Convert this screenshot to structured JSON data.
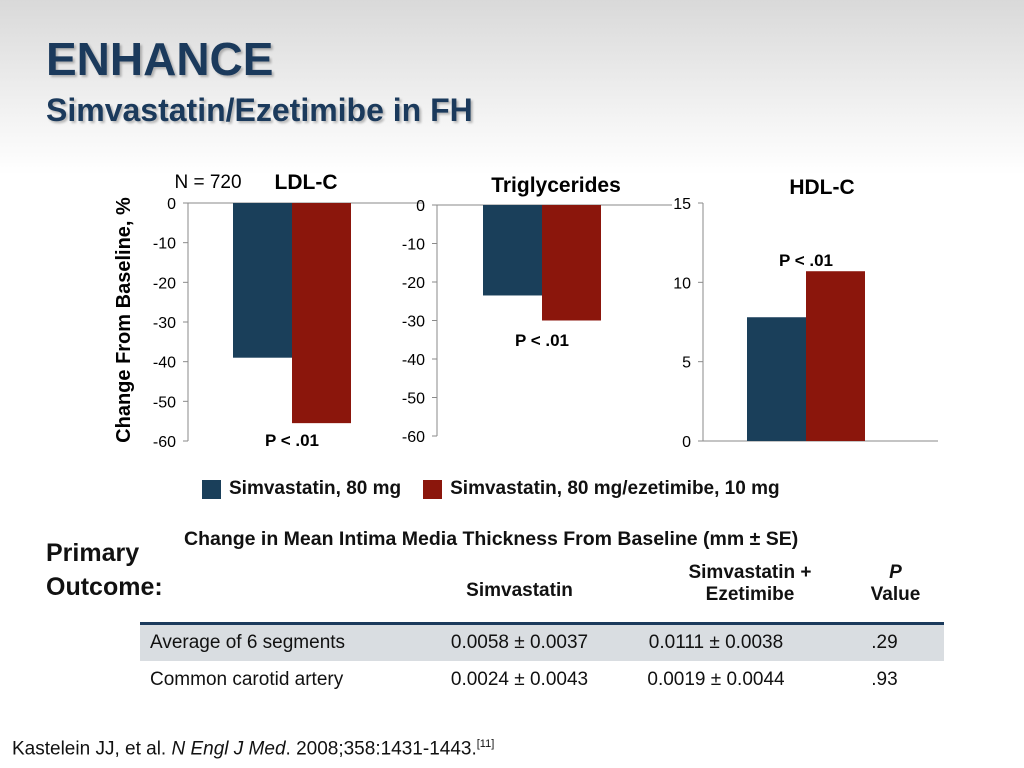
{
  "header": {
    "title": "ENHANCE",
    "subtitle": "Simvastatin/Ezetimibe in FH"
  },
  "colors": {
    "sim": "#1a3f5a",
    "combo": "#8b160c",
    "title": "#1b3a5c"
  },
  "chart_data": [
    {
      "type": "bar",
      "title": "LDL-C",
      "annotation_n": "N = 720",
      "ylabel": "Change From Baseline, %",
      "ylim": [
        -60,
        0
      ],
      "ticks": [
        "0",
        "-10",
        "-20",
        "-30",
        "-40",
        "-50",
        "-60"
      ],
      "tick_values": [
        0,
        -10,
        -20,
        -30,
        -40,
        -50,
        -60
      ],
      "series": [
        {
          "name": "Simvastatin, 80 mg",
          "values": [
            -39
          ]
        },
        {
          "name": "Simvastatin, 80 mg/ezetimibe, 10 mg",
          "values": [
            -55.5
          ]
        }
      ],
      "p_label": "P < .01"
    },
    {
      "type": "bar",
      "title": "Triglycerides",
      "ylim": [
        -60,
        0
      ],
      "ticks": [
        "0",
        "-10",
        "-20",
        "-30",
        "-40",
        "-50",
        "-60"
      ],
      "tick_values": [
        0,
        -10,
        -20,
        -30,
        -40,
        -50,
        -60
      ],
      "series": [
        {
          "name": "Simvastatin, 80 mg",
          "values": [
            -23.5
          ]
        },
        {
          "name": "Simvastatin, 80 mg/ezetimibe, 10 mg",
          "values": [
            -30
          ]
        }
      ],
      "p_label": "P < .01"
    },
    {
      "type": "bar",
      "title": "HDL-C",
      "ylim": [
        0,
        15
      ],
      "ticks": [
        "15",
        "10",
        "5",
        "0"
      ],
      "tick_values": [
        15,
        10,
        5,
        0
      ],
      "series": [
        {
          "name": "Simvastatin, 80 mg",
          "values": [
            7.8
          ]
        },
        {
          "name": "Simvastatin, 80 mg/ezetimibe, 10 mg",
          "values": [
            10.7
          ]
        }
      ],
      "p_label": "P < .01"
    }
  ],
  "legend": {
    "sim": "Simvastatin, 80 mg",
    "combo": "Simvastatin, 80 mg/ezetimibe, 10 mg"
  },
  "outcome": {
    "label_line1": "Primary",
    "label_line2": "Outcome:",
    "table_title": "Change in Mean Intima Media Thickness From Baseline (mm ± SE)",
    "headers": {
      "col2": "Simvastatin",
      "col3_line1": "Simvastatin +",
      "col3_line2": "Ezetimibe",
      "col4_line1": "P",
      "col4_line2": "Value"
    },
    "rows": [
      {
        "label": "Average of 6 segments",
        "sim": "0.0058 ± 0.0037",
        "combo": "0.0111 ± 0.0038",
        "p": ".29"
      },
      {
        "label": "Common carotid artery",
        "sim": "0.0024 ± 0.0043",
        "combo": "0.0019 ± 0.0044",
        "p": ".93"
      }
    ]
  },
  "citation": {
    "authors": "Kastelein JJ, et al. ",
    "journal": "N Engl J Med",
    "details": ". 2008;358:1431-1443.",
    "ref": "[11]"
  }
}
